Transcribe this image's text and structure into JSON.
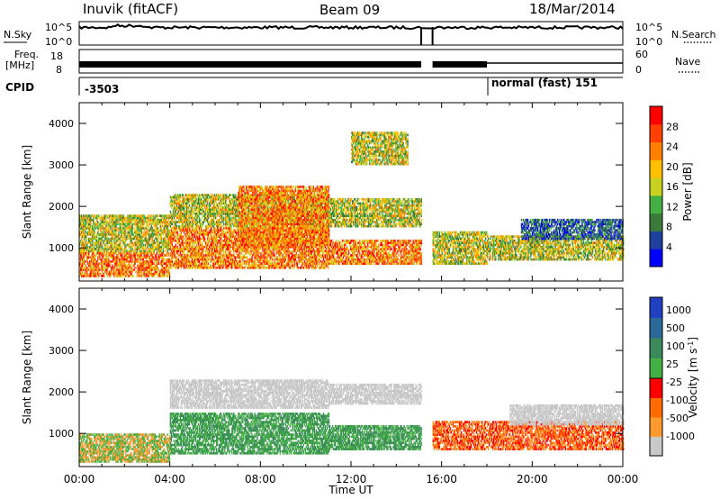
{
  "header": {
    "station": "Inuvik (fitACF)",
    "beam": "Beam 09",
    "date": "18/Mar/2014"
  },
  "noise_panel": {
    "left_label": "N.Sky",
    "right_label": "N.Search",
    "right_legend_line": "dotted",
    "left_ticks": [
      "10^5",
      "10^0"
    ],
    "right_ticks": [
      "10^5",
      "10^0"
    ]
  },
  "freq_panel": {
    "left_label_line1": "Freq.",
    "left_label_line2": "[MHz]",
    "right_label": "Nave",
    "right_legend_line": "dotted",
    "left_ticks": [
      "18",
      "8"
    ],
    "right_ticks": [
      "60",
      "0"
    ]
  },
  "cpid_panel": {
    "label": "CPID",
    "segments": [
      {
        "text": "-3503",
        "start_hour": 0,
        "end_hour": 18
      },
      {
        "text": "normal (fast) 151",
        "start_hour": 18,
        "end_hour": 24
      }
    ]
  },
  "time_axis": {
    "label": "Time UT",
    "ticks": [
      "00:00",
      "04:00",
      "08:00",
      "12:00",
      "16:00",
      "20:00",
      "00:00"
    ]
  },
  "chart_data": [
    {
      "type": "heatmap",
      "parameter": "power",
      "ylabel": "Slant Range [km]",
      "xlabel": "",
      "xlim": [
        0,
        24
      ],
      "ylim": [
        200,
        4500
      ],
      "y_ticks": [
        1000,
        2000,
        3000,
        4000
      ],
      "data_gap_hours": [
        15.1,
        15.6
      ],
      "colorbar": {
        "label": "Power [dB]",
        "ticks": [
          "28",
          "24",
          "20",
          "16",
          "12",
          "8",
          "4"
        ],
        "range": [
          0,
          30
        ],
        "colors": [
          "#0000ff",
          "#2040a0",
          "#3a7a3a",
          "#44b044",
          "#c8d020",
          "#ffc000",
          "#ff8000",
          "#ff4000",
          "#ff0000"
        ]
      },
      "echo_bands": [
        {
          "t0": 0.0,
          "t1": 4.0,
          "r0": 300,
          "r1": 900,
          "level": "high"
        },
        {
          "t0": 0.0,
          "t1": 4.0,
          "r0": 900,
          "r1": 1800,
          "level": "medium"
        },
        {
          "t0": 4.0,
          "t1": 11.0,
          "r0": 500,
          "r1": 1500,
          "level": "high"
        },
        {
          "t0": 4.0,
          "t1": 11.0,
          "r0": 1500,
          "r1": 2300,
          "level": "medium"
        },
        {
          "t0": 7.0,
          "t1": 11.0,
          "r0": 1000,
          "r1": 2500,
          "level": "high"
        },
        {
          "t0": 11.0,
          "t1": 15.1,
          "r0": 600,
          "r1": 1200,
          "level": "high"
        },
        {
          "t0": 11.0,
          "t1": 15.1,
          "r0": 1500,
          "r1": 2200,
          "level": "medium"
        },
        {
          "t0": 12.0,
          "t1": 14.5,
          "r0": 3000,
          "r1": 3800,
          "level": "medium"
        },
        {
          "t0": 15.6,
          "t1": 18.0,
          "r0": 600,
          "r1": 1400,
          "level": "medium"
        },
        {
          "t0": 18.0,
          "t1": 24.0,
          "r0": 700,
          "r1": 1300,
          "level": "medium"
        },
        {
          "t0": 19.5,
          "t1": 24.0,
          "r0": 1200,
          "r1": 1700,
          "level": "low"
        }
      ]
    },
    {
      "type": "heatmap",
      "parameter": "velocity",
      "ylabel": "Slant Range [km]",
      "xlabel": "Time UT",
      "xlim": [
        0,
        24
      ],
      "ylim": [
        200,
        4500
      ],
      "y_ticks": [
        1000,
        2000,
        3000,
        4000
      ],
      "data_gap_hours": [
        15.1,
        15.6
      ],
      "colorbar": {
        "label": "Velocity [m s^-1]",
        "ticks": [
          "1000",
          "500",
          "100",
          "25",
          "-25",
          "-100",
          "-500",
          "-1000"
        ],
        "colors": [
          "#2040c0",
          "#2a6a9a",
          "#3a8a5a",
          "#44b044",
          "#c8c8c8",
          "#ff9a30",
          "#ff6a00",
          "#ff0000"
        ]
      },
      "echo_bands": [
        {
          "t0": 0.0,
          "t1": 4.0,
          "r0": 300,
          "r1": 1000,
          "level": "orange-green"
        },
        {
          "t0": 4.0,
          "t1": 11.0,
          "r0": 500,
          "r1": 1500,
          "level": "green"
        },
        {
          "t0": 4.0,
          "t1": 11.0,
          "r0": 1600,
          "r1": 2300,
          "level": "grey"
        },
        {
          "t0": 11.0,
          "t1": 15.1,
          "r0": 1700,
          "r1": 2200,
          "level": "grey"
        },
        {
          "t0": 11.0,
          "t1": 15.1,
          "r0": 600,
          "r1": 1200,
          "level": "green"
        },
        {
          "t0": 15.6,
          "t1": 24.0,
          "r0": 600,
          "r1": 1300,
          "level": "orange"
        },
        {
          "t0": 19.0,
          "t1": 24.0,
          "r0": 1200,
          "r1": 1700,
          "level": "grey"
        }
      ]
    }
  ]
}
